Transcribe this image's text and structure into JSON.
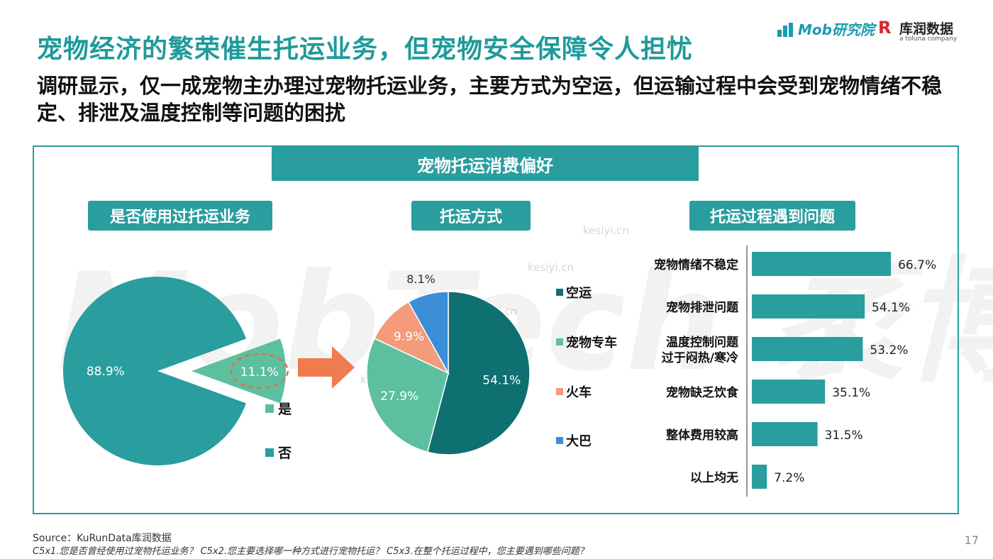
{
  "header": {
    "title": "宠物经济的繁荣催生托运业务，但宠物安全保障令人担忧",
    "subtitle": "调研显示，仅一成宠物主办理过宠物托运业务，主要方式为空运，但运输过程中会受到宠物情绪不稳定、排泄及温度控制等问题的困扰"
  },
  "logos": {
    "mob": "Mob研究院",
    "kurun_mark": "R",
    "kurun": "库润数据",
    "kurun_sub": "a toluna company"
  },
  "section_title": "宠物托运消费偏好",
  "watermark": "MobTech 袤博",
  "watermark_small": "kesiyi.cn",
  "colors": {
    "teal": "#2a9d9e",
    "dark_teal": "#0e7070",
    "green": "#5bbfa0",
    "orange": "#f39b7a",
    "blue": "#3a8fd6",
    "arrow": "#f07b4f"
  },
  "chart_data": [
    {
      "type": "pie",
      "title": "是否使用过托运业务",
      "categories": [
        "是",
        "否"
      ],
      "values": [
        11.1,
        88.9
      ],
      "labels": [
        "11.1%",
        "88.9%"
      ],
      "legend": [
        "是",
        "否"
      ]
    },
    {
      "type": "pie",
      "title": "托运方式",
      "categories": [
        "空运",
        "宠物专车",
        "火车",
        "大巴"
      ],
      "values": [
        54.1,
        27.9,
        9.9,
        8.1
      ],
      "labels": [
        "54.1%",
        "27.9%",
        "9.9%",
        "8.1%"
      ],
      "legend": [
        "空运",
        "宠物专车",
        "火车",
        "大巴"
      ]
    },
    {
      "type": "bar",
      "orientation": "horizontal",
      "title": "托运过程遇到问题",
      "categories": [
        "宠物情绪不稳定",
        "宠物排泄问题",
        "温度控制问题过于闷热/寒冷",
        "宠物缺乏饮食",
        "整体费用较高",
        "以上均无"
      ],
      "category_lines": [
        [
          "宠物情绪不稳定"
        ],
        [
          "宠物排泄问题"
        ],
        [
          "温度控制问题",
          "过于闷热/寒冷"
        ],
        [
          "宠物缺乏饮食"
        ],
        [
          "整体费用较高"
        ],
        [
          "以上均无"
        ]
      ],
      "values": [
        66.7,
        54.1,
        53.2,
        35.1,
        31.5,
        7.2
      ],
      "labels": [
        "66.7%",
        "54.1%",
        "53.2%",
        "35.1%",
        "31.5%",
        "7.2%"
      ],
      "xlim": [
        0,
        100
      ]
    }
  ],
  "footer": {
    "source": "Source：KuRunData库润数据",
    "note": "C5x1.您是否曾经使用过宠物托运业务？ C5x2.您主要选择哪一种方式进行宠物托运？ C5x3.在整个托运过程中，您主要遇到哪些问题？",
    "page": "17"
  }
}
